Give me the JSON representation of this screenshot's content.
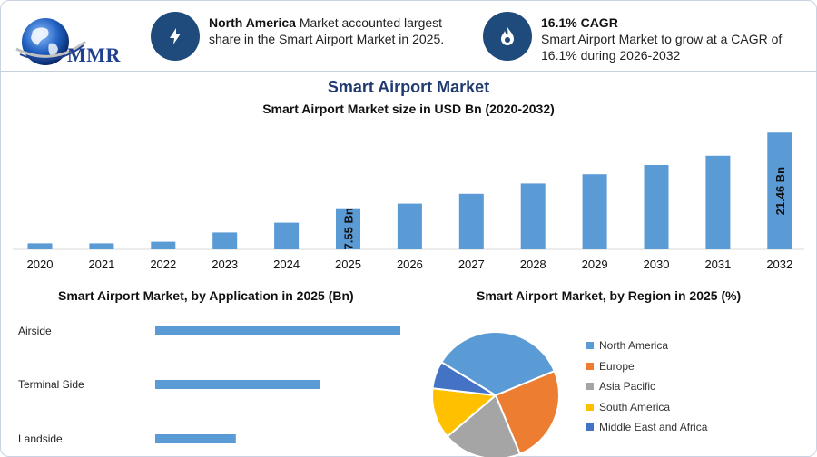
{
  "logo": {
    "text": "MMR"
  },
  "info": [
    {
      "icon": "lightning-icon",
      "bold": "North America",
      "text": " Market accounted largest share in the Smart Airport Market in 2025."
    },
    {
      "icon": "flame-icon",
      "bold": "16.1% CAGR",
      "text": "Smart Airport Market to grow at a CAGR of 16.1% during 2026-2032"
    }
  ],
  "colors": {
    "bar": "#5b9bd5",
    "navy": "#1f4a7c"
  },
  "chart_data": [
    {
      "type": "bar",
      "title": "Smart Airport Market",
      "subtitle": "Smart Airport Market size in USD Bn (2020-2032)",
      "categories": [
        "2020",
        "2021",
        "2022",
        "2023",
        "2024",
        "2025",
        "2026",
        "2027",
        "2028",
        "2029",
        "2030",
        "2031",
        "2032"
      ],
      "values": [
        1.1,
        1.1,
        1.4,
        3.1,
        4.9,
        7.55,
        8.4,
        10.2,
        12.1,
        13.8,
        15.5,
        17.2,
        21.46
      ],
      "data_labels": {
        "5": "7.55 Bn",
        "12": "21.46 Bn"
      },
      "ylim": [
        0,
        22
      ]
    },
    {
      "type": "bar",
      "orientation": "horizontal",
      "title": "Smart Airport Market, by Application in 2025 (Bn)",
      "categories": [
        "Airside",
        "Terminal Side",
        "Landside"
      ],
      "values": [
        3.8,
        2.55,
        1.25
      ],
      "xlim": [
        0,
        4.5
      ]
    },
    {
      "type": "pie",
      "title": "Smart Airport Market, by Region in 2025 (%)",
      "labels": [
        "North America",
        "Europe",
        "Asia Pacific",
        "South America",
        "Middle East and Africa"
      ],
      "values": [
        35,
        25,
        20,
        13,
        7
      ],
      "colors": [
        "#5b9bd5",
        "#ed7d31",
        "#a5a5a5",
        "#ffc000",
        "#4472c4"
      ]
    }
  ]
}
